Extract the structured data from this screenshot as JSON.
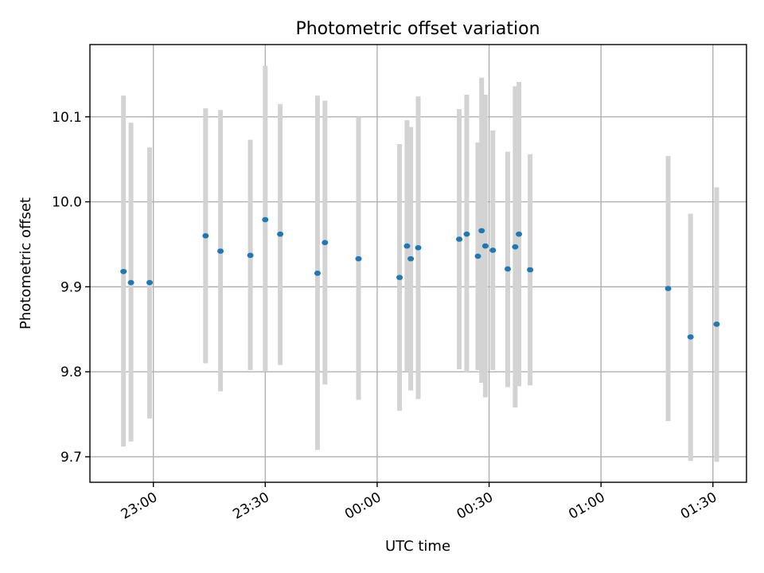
{
  "chart_data": {
    "type": "scatter",
    "title": "Photometric offset variation",
    "xlabel": "UTC time",
    "ylabel": "Photometric offset",
    "x_axis_kind": "time",
    "xlim": [
      "22:43",
      "01:39"
    ],
    "ylim": [
      9.67,
      10.185
    ],
    "x_ticks": [
      {
        "time": "23:00",
        "label": "23:00"
      },
      {
        "time": "23:30",
        "label": "23:30"
      },
      {
        "time": "24:00",
        "label": "00:00"
      },
      {
        "time": "24:30",
        "label": "00:30"
      },
      {
        "time": "25:00",
        "label": "01:00"
      },
      {
        "time": "25:30",
        "label": "01:30"
      }
    ],
    "y_ticks": [
      {
        "value": 9.7,
        "label": "9.7"
      },
      {
        "value": 9.8,
        "label": "9.8"
      },
      {
        "value": 9.9,
        "label": "9.9"
      },
      {
        "value": 10.0,
        "label": "10.0"
      },
      {
        "value": 10.1,
        "label": "10.1"
      }
    ],
    "grid": true,
    "colors": {
      "point": "#1f77b4",
      "errorbar": "#d3d3d3"
    },
    "points": [
      {
        "time": "22:52",
        "y": 9.918,
        "y_low": 9.712,
        "y_high": 10.125
      },
      {
        "time": "22:54",
        "y": 9.905,
        "y_low": 9.718,
        "y_high": 10.093
      },
      {
        "time": "22:59",
        "y": 9.905,
        "y_low": 9.745,
        "y_high": 10.064
      },
      {
        "time": "23:14",
        "y": 9.96,
        "y_low": 9.81,
        "y_high": 10.11
      },
      {
        "time": "23:18",
        "y": 9.942,
        "y_low": 9.777,
        "y_high": 10.108
      },
      {
        "time": "23:26",
        "y": 9.937,
        "y_low": 9.802,
        "y_high": 10.073
      },
      {
        "time": "23:30",
        "y": 9.979,
        "y_low": 9.8,
        "y_high": 10.16
      },
      {
        "time": "23:34",
        "y": 9.962,
        "y_low": 9.808,
        "y_high": 10.115
      },
      {
        "time": "23:44",
        "y": 9.916,
        "y_low": 9.708,
        "y_high": 10.125
      },
      {
        "time": "23:46",
        "y": 9.952,
        "y_low": 9.785,
        "y_high": 10.119
      },
      {
        "time": "23:55",
        "y": 9.933,
        "y_low": 9.767,
        "y_high": 10.1
      },
      {
        "time": "24:06",
        "y": 9.911,
        "y_low": 9.754,
        "y_high": 10.068
      },
      {
        "time": "24:08",
        "y": 9.948,
        "y_low": 9.8,
        "y_high": 10.096
      },
      {
        "time": "24:09",
        "y": 9.933,
        "y_low": 9.778,
        "y_high": 10.088
      },
      {
        "time": "24:11",
        "y": 9.946,
        "y_low": 9.768,
        "y_high": 10.124
      },
      {
        "time": "24:22",
        "y": 9.956,
        "y_low": 9.803,
        "y_high": 10.109
      },
      {
        "time": "24:24",
        "y": 9.962,
        "y_low": 9.799,
        "y_high": 10.126
      },
      {
        "time": "24:27",
        "y": 9.936,
        "y_low": 9.802,
        "y_high": 10.07
      },
      {
        "time": "24:28",
        "y": 9.966,
        "y_low": 9.787,
        "y_high": 10.146
      },
      {
        "time": "24:29",
        "y": 9.948,
        "y_low": 9.77,
        "y_high": 10.126
      },
      {
        "time": "24:31",
        "y": 9.943,
        "y_low": 9.802,
        "y_high": 10.084
      },
      {
        "time": "24:35",
        "y": 9.921,
        "y_low": 9.782,
        "y_high": 10.059
      },
      {
        "time": "24:37",
        "y": 9.947,
        "y_low": 9.758,
        "y_high": 10.136
      },
      {
        "time": "24:38",
        "y": 9.962,
        "y_low": 9.783,
        "y_high": 10.141
      },
      {
        "time": "24:41",
        "y": 9.92,
        "y_low": 9.784,
        "y_high": 10.056
      },
      {
        "time": "25:18",
        "y": 9.898,
        "y_low": 9.742,
        "y_high": 10.054
      },
      {
        "time": "25:24",
        "y": 9.841,
        "y_low": 9.695,
        "y_high": 9.986
      },
      {
        "time": "25:31",
        "y": 9.856,
        "y_low": 9.694,
        "y_high": 10.017
      }
    ]
  }
}
